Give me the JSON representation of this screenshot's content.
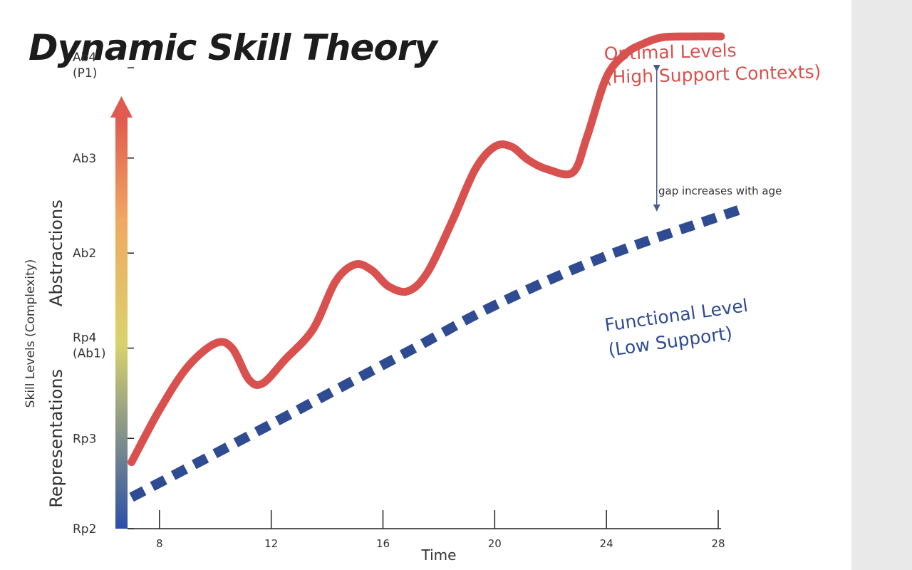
{
  "title": "Dynamic Skill Theory",
  "colors": {
    "optimal": "#d9514e",
    "functional": "#2f4c93",
    "axis": "#222222",
    "gradient_top": "#e05a4f",
    "gradient_mid": "#f0a862",
    "gradient_low": "#d9d36c",
    "gradient_bottom": "#2c4fa8"
  },
  "chart_data": {
    "type": "line",
    "title": "Dynamic Skill Theory",
    "xlabel": "Time",
    "ylabel": "Skill Levels (Complexity)",
    "xlim": [
      6.5,
      28
    ],
    "ylim": [
      0,
      5
    ],
    "x_ticks": [
      8,
      12,
      16,
      20,
      24,
      28
    ],
    "y_ticks": [
      {
        "value": 0,
        "label": [
          "Rp2"
        ]
      },
      {
        "value": 0.95,
        "label": [
          "Rp3"
        ]
      },
      {
        "value": 1.9,
        "label": [
          "Rp4",
          "(Ab1)"
        ]
      },
      {
        "value": 2.9,
        "label": [
          "Ab2"
        ]
      },
      {
        "value": 3.9,
        "label": [
          "Ab3"
        ]
      },
      {
        "value": 4.85,
        "label": [
          "Ab4",
          "(P1)"
        ]
      }
    ],
    "y_groups": [
      {
        "label": "Representations",
        "from": 0,
        "to": 1.9
      },
      {
        "label": "Abstractions",
        "from": 1.9,
        "to": 3.9
      }
    ],
    "series": [
      {
        "name": "Optimal Levels (High Support Contexts)",
        "label_lines": [
          "Optimal Levels",
          "(High Support Contexts)"
        ],
        "style": "solid",
        "color": "#d9514e",
        "x": [
          7.0,
          8.0,
          9.0,
          10.0,
          10.6,
          11.2,
          11.7,
          12.5,
          13.5,
          14.3,
          15.0,
          15.6,
          16.2,
          16.9,
          17.6,
          18.5,
          19.3,
          20.0,
          20.6,
          21.2,
          21.9,
          22.8,
          23.3,
          24.0,
          24.7,
          25.3,
          26.0,
          27.0,
          28.1
        ],
        "y": [
          0.7,
          1.25,
          1.7,
          1.95,
          1.9,
          1.57,
          1.53,
          1.78,
          2.1,
          2.6,
          2.78,
          2.72,
          2.55,
          2.5,
          2.7,
          3.25,
          3.78,
          4.02,
          4.02,
          3.88,
          3.78,
          3.75,
          4.12,
          4.75,
          5.0,
          5.1,
          5.17,
          5.18,
          5.18
        ]
      },
      {
        "name": "Functional Level (Low Support)",
        "label_lines": [
          "Functional Level",
          "(Low Support)"
        ],
        "style": "dashed",
        "color": "#2f4c93",
        "x": [
          7.0,
          12.0,
          17.0,
          20.0,
          24.0,
          28.9
        ],
        "y": [
          0.33,
          1.1,
          1.88,
          2.35,
          2.87,
          3.37
        ]
      }
    ],
    "annotations": [
      {
        "text": "gap increases with age",
        "arrow_x": 25.8,
        "arrow_from": 4.92,
        "arrow_to": 3.3
      }
    ]
  }
}
